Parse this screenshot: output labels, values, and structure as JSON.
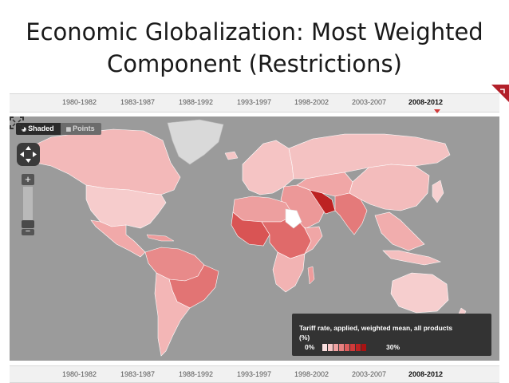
{
  "slide": {
    "title": "Economic Globalization: Most Weighted Component (Restrictions)"
  },
  "timeline": {
    "periods": [
      "1980-1982",
      "1983-1987",
      "1988-1992",
      "1993-1997",
      "1998-2002",
      "2003-2007",
      "2008-2012"
    ],
    "selected": "2008-2012"
  },
  "map": {
    "toggle": {
      "shaded_label": "Shaded",
      "points_label": "Points",
      "selected": "Shaded"
    },
    "zoom": {
      "in_label": "+",
      "out_label": "−"
    },
    "legend": {
      "title": "Tariff rate, applied, weighted mean, all products",
      "unit": "(%)",
      "min_label": "0%",
      "max_label": "30%"
    },
    "colors": {
      "ocean": "#9b9b9b",
      "no_data": "#d9d9d9",
      "scale": [
        "#fbe1e1",
        "#f7c4c4",
        "#f0a2a2",
        "#e77f7f",
        "#dd5c5c",
        "#cf3a3a",
        "#bd2222",
        "#a81212"
      ]
    },
    "icons": [
      "pan-control-icon",
      "zoom-in-icon",
      "zoom-out-icon",
      "fullscreen-icon"
    ]
  }
}
